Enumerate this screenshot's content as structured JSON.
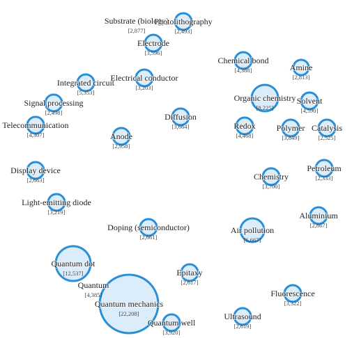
{
  "nodes": [
    {
      "label": "Substrate (biology)",
      "count": "[2,877]"
    },
    {
      "label": "Photolithography",
      "count": "[2,493]"
    },
    {
      "label": "Electrode",
      "count": "[3,596]"
    },
    {
      "label": "Chemical bond",
      "count": "[4,388]"
    },
    {
      "label": "Amine",
      "count": "[2,813]"
    },
    {
      "label": "Integrated circuit",
      "count": "[5,353]"
    },
    {
      "label": "Electrical conductor",
      "count": "[3,203]"
    },
    {
      "label": "Organic chemistry",
      "count": "[8,225]"
    },
    {
      "label": "Solvent",
      "count": "[4,590]"
    },
    {
      "label": "Signal processing",
      "count": "[2,498]"
    },
    {
      "label": "Telecommunication",
      "count": "[4,307]"
    },
    {
      "label": "Diffusion",
      "count": "[3,664]"
    },
    {
      "label": "Redox",
      "count": "[4,468]"
    },
    {
      "label": "Polymer",
      "count": "[3,849]"
    },
    {
      "label": "Catalysis",
      "count": "[2,525]"
    },
    {
      "label": "Anode",
      "count": "[2,958]"
    },
    {
      "label": "Display device",
      "count": "[2,663]"
    },
    {
      "label": "Chemistry",
      "count": "[3,700]"
    },
    {
      "label": "Petroleum",
      "count": "[2,333]"
    },
    {
      "label": "Light-emitting diode",
      "count": "[3,219]"
    },
    {
      "label": "Aluminium",
      "count": "[2,867]"
    },
    {
      "label": "Doping (semiconductor)",
      "count": "[2,661]"
    },
    {
      "label": "Air pollution",
      "count": "[6,667]"
    },
    {
      "label": "Quantum dot",
      "count": "[12,537]"
    },
    {
      "label": "Quantum",
      "count": "[4,385]"
    },
    {
      "label": "Quantum mechanics",
      "count": "[22,208]"
    },
    {
      "label": "Epitaxy",
      "count": "[2,617]"
    },
    {
      "label": "Fluorescence",
      "count": "[3,322]"
    },
    {
      "label": "Ultrasound",
      "count": "[2,619]"
    },
    {
      "label": "Quantum well",
      "count": "[3,920]"
    }
  ]
}
